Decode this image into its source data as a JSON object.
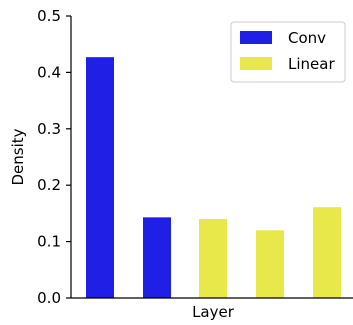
{
  "chart_data": {
    "type": "bar",
    "title": "",
    "xlabel": "Layer",
    "ylabel": "Density",
    "ylim": [
      0,
      0.5
    ],
    "yticks": [
      "0.0",
      "0.1",
      "0.2",
      "0.3",
      "0.4",
      "0.5"
    ],
    "grid": false,
    "legend_position": "top-right",
    "series": [
      {
        "name": "Conv",
        "color": "#1f1fe6",
        "bars": [
          {
            "index": 0,
            "value": 0.427
          },
          {
            "index": 1,
            "value": 0.143
          }
        ]
      },
      {
        "name": "Linear",
        "color": "#e8e84a",
        "bars": [
          {
            "index": 2,
            "value": 0.14
          },
          {
            "index": 3,
            "value": 0.12
          },
          {
            "index": 4,
            "value": 0.161
          }
        ]
      }
    ]
  }
}
